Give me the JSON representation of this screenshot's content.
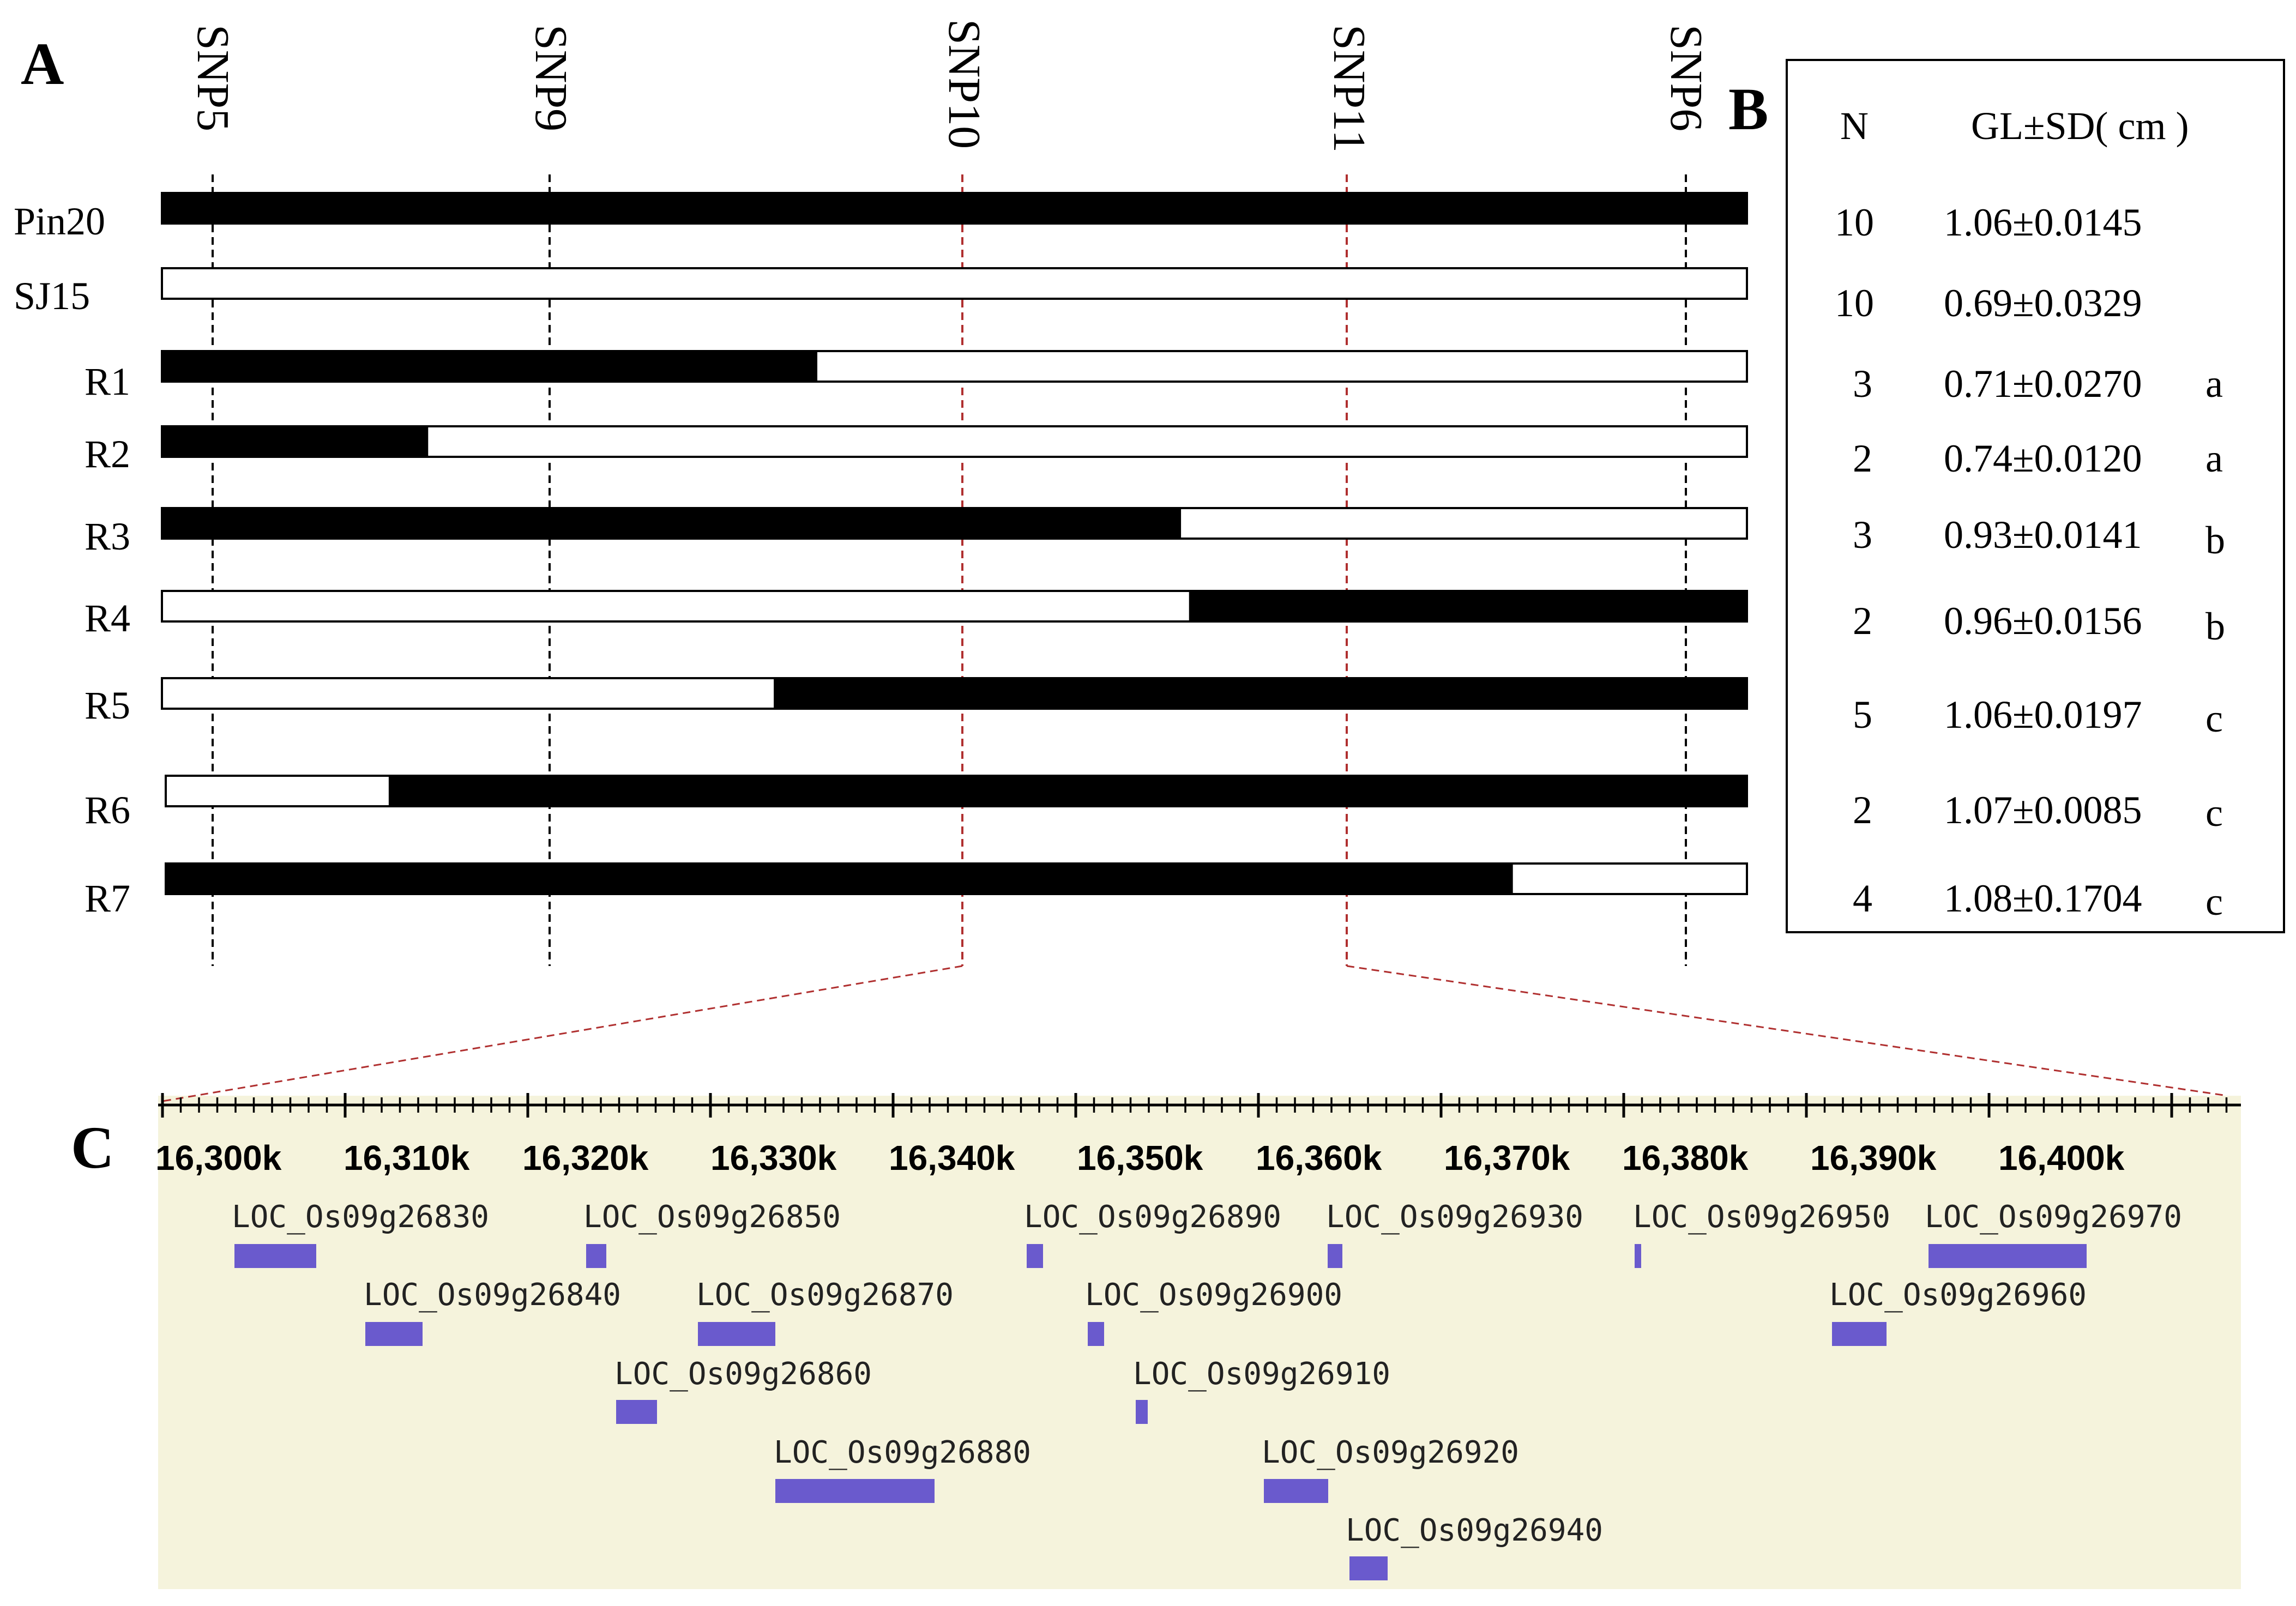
{
  "panels": {
    "a": "A",
    "b": "B",
    "c": "C"
  },
  "snps": [
    "SNP5",
    "SNP9",
    "SNP10",
    "SNP11",
    "SNP6"
  ],
  "rows": [
    {
      "label": "Pin20",
      "segments": [
        [
          0,
          1,
          "black"
        ]
      ]
    },
    {
      "label": "SJ15",
      "segments": [
        [
          0,
          1,
          "white"
        ]
      ]
    },
    {
      "label": "R1",
      "segments": [
        [
          0,
          0.4135,
          "black"
        ],
        [
          0.4135,
          1,
          "white"
        ]
      ]
    },
    {
      "label": "R2",
      "segments": [
        [
          0,
          0.168,
          "black"
        ],
        [
          0.168,
          1,
          "white"
        ]
      ]
    },
    {
      "label": "R3",
      "segments": [
        [
          0,
          0.643,
          "black"
        ],
        [
          0.643,
          1,
          "white"
        ]
      ]
    },
    {
      "label": "R4",
      "segments": [
        [
          0,
          0.648,
          "white"
        ],
        [
          0.648,
          1,
          "black"
        ]
      ]
    },
    {
      "label": "R5",
      "segments": [
        [
          0,
          0.386,
          "white"
        ],
        [
          0.386,
          1,
          "black"
        ]
      ]
    },
    {
      "label": "R6",
      "segments": [
        [
          0,
          0.141,
          "white"
        ],
        [
          0.141,
          1,
          "black"
        ]
      ]
    },
    {
      "label": "R7",
      "segments": [
        [
          0,
          0.852,
          "black"
        ],
        [
          0.852,
          1,
          "white"
        ]
      ]
    }
  ],
  "table": {
    "headers": {
      "n": "N",
      "gl": "GL±SD( cm )"
    },
    "rows": [
      {
        "n": "10",
        "gl": "1.06±0.0145",
        "g": ""
      },
      {
        "n": "10",
        "gl": "0.69±0.0329",
        "g": ""
      },
      {
        "n": "3",
        "gl": "0.71±0.0270",
        "g": "a"
      },
      {
        "n": "2",
        "gl": "0.74±0.0120",
        "g": "a"
      },
      {
        "n": "3",
        "gl": "0.93±0.0141",
        "g": "b"
      },
      {
        "n": "2",
        "gl": "0.96±0.0156",
        "g": "b"
      },
      {
        "n": "5",
        "gl": "1.06±0.0197",
        "g": "c"
      },
      {
        "n": "2",
        "gl": "1.07±0.0085",
        "g": "c"
      },
      {
        "n": "4",
        "gl": "1.08±0.1704",
        "g": "c"
      }
    ]
  },
  "axis": {
    "labels": [
      "16,300k",
      "16,310k",
      "16,320k",
      "16,330k",
      "16,340k",
      "16,350k",
      "16,360k",
      "16,370k",
      "16,380k",
      "16,390k",
      "16,400k"
    ]
  },
  "genes": [
    {
      "name": "LOC_Os09g26830"
    },
    {
      "name": "LOC_Os09g26840"
    },
    {
      "name": "LOC_Os09g26850"
    },
    {
      "name": "LOC_Os09g26860"
    },
    {
      "name": "LOC_Os09g26870"
    },
    {
      "name": "LOC_Os09g26880"
    },
    {
      "name": "LOC_Os09g26890"
    },
    {
      "name": "LOC_Os09g26900"
    },
    {
      "name": "LOC_Os09g26910"
    },
    {
      "name": "LOC_Os09g26920"
    },
    {
      "name": "LOC_Os09g26930"
    },
    {
      "name": "LOC_Os09g26940"
    },
    {
      "name": "LOC_Os09g26950"
    },
    {
      "name": "LOC_Os09g26960"
    },
    {
      "name": "LOC_Os09g26970"
    }
  ],
  "colors": {
    "bar_fill": "#000000",
    "snp10_11_line": "#b03030",
    "track_bg": "#f5f3dc",
    "gene_fill": "#6a5acd"
  }
}
